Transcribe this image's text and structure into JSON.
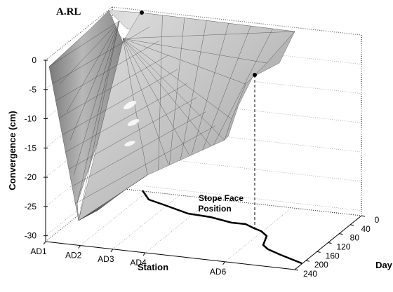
{
  "chart_data": {
    "type": "surface3d",
    "title": "A.RL",
    "zlabel": "Convergence (cm)",
    "xlabel": "Station",
    "ylabel": "Day",
    "z_ticks": [
      0,
      -5,
      -10,
      -15,
      -20,
      -25,
      -30
    ],
    "zlim": [
      -31,
      0
    ],
    "station_ticks": [
      "AD1",
      "AD2",
      "AD3",
      "AD4",
      "AD6"
    ],
    "day_ticks": [
      0,
      40,
      80,
      120,
      160,
      200,
      240
    ],
    "day_lim": [
      0,
      240
    ],
    "annotation": "Stope Face\nPosition",
    "markers": [
      {
        "station": "AD2",
        "day": 0,
        "convergence": 0
      },
      {
        "station": "AD6",
        "day": 0,
        "convergence": -3
      }
    ],
    "surface_color": "grayscale",
    "grid": true
  }
}
